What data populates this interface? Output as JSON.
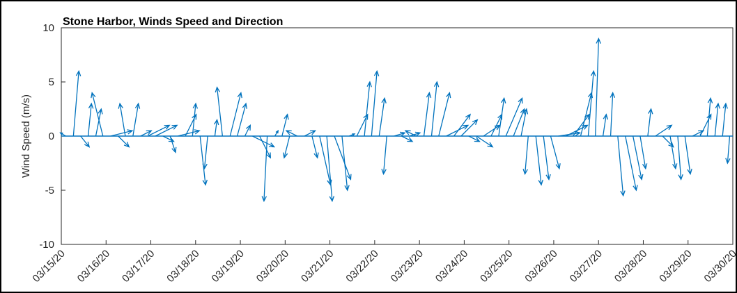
{
  "chart_data": {
    "type": "stick",
    "title": "Stone Harbor, Winds Speed and Direction",
    "y_label": "Wind Speed (m/s)",
    "xlim": [
      0,
      15
    ],
    "xticks": [
      {
        "value": 0,
        "label": "03/15/20"
      },
      {
        "value": 1,
        "label": "03/16/20"
      },
      {
        "value": 2,
        "label": "03/17/20"
      },
      {
        "value": 3,
        "label": "03/18/20"
      },
      {
        "value": 4,
        "label": "03/19/20"
      },
      {
        "value": 5,
        "label": "03/20/20"
      },
      {
        "value": 6,
        "label": "03/21/20"
      },
      {
        "value": 7,
        "label": "03/22/20"
      },
      {
        "value": 8,
        "label": "03/23/20"
      },
      {
        "value": 9,
        "label": "03/24/20"
      },
      {
        "value": 10,
        "label": "03/25/20"
      },
      {
        "value": 11,
        "label": "03/26/20"
      },
      {
        "value": 12,
        "label": "03/27/20"
      },
      {
        "value": 13,
        "label": "03/28/20"
      },
      {
        "value": 14,
        "label": "03/29/20"
      },
      {
        "value": 15,
        "label": "03/30/20"
      }
    ],
    "ylim": [
      -10,
      10
    ],
    "yticks": [
      -10,
      -5,
      0,
      5,
      10
    ],
    "color": "#0072bd",
    "x": [
      0.1,
      0.27,
      0.43,
      0.6,
      0.77,
      0.93,
      1.1,
      1.27,
      1.43,
      1.6,
      1.77,
      1.93,
      2.1,
      2.27,
      2.43,
      2.6,
      2.77,
      2.93,
      3.1,
      3.27,
      3.43,
      3.6,
      3.77,
      3.93,
      4.1,
      4.27,
      4.43,
      4.6,
      4.77,
      4.93,
      5.1,
      5.27,
      5.43,
      5.6,
      5.77,
      5.93,
      6.1,
      6.27,
      6.43,
      6.6,
      6.77,
      6.93,
      7.1,
      7.27,
      7.43,
      7.6,
      7.77,
      7.93,
      8.1,
      8.27,
      8.43,
      8.6,
      8.77,
      8.93,
      9.1,
      9.27,
      9.43,
      9.6,
      9.77,
      9.93,
      10.1,
      10.27,
      10.43,
      10.6,
      10.77,
      10.93,
      11.1,
      11.27,
      11.43,
      11.6,
      11.77,
      11.93,
      12.1,
      12.27,
      12.43,
      12.6,
      12.77,
      12.93,
      13.1,
      13.27,
      13.43,
      13.6,
      13.77,
      13.93,
      14.1,
      14.27,
      14.43,
      14.6,
      14.77,
      14.93
    ],
    "u": [
      -0.5,
      0.5,
      0.8,
      0.3,
      0.5,
      -1,
      2,
      1,
      -0.5,
      0.5,
      1,
      2,
      2,
      1,
      0.5,
      2,
      1,
      0.3,
      0.5,
      -0.3,
      0.2,
      -0.5,
      1,
      0.8,
      0.5,
      2,
      1,
      -0.3,
      0.3,
      0.5,
      -0.5,
      -1,
      1,
      0.5,
      1,
      0.5,
      1.5,
      0.5,
      0.5,
      1,
      0.5,
      0.5,
      0.5,
      -0.3,
      1,
      1,
      1,
      -1,
      0.5,
      0.5,
      1,
      2,
      1.5,
      1.5,
      1,
      1.5,
      1.5,
      1,
      0.5,
      1.5,
      1,
      0.5,
      -0.3,
      0.5,
      0.5,
      0.8,
      2,
      2,
      1.5,
      1,
      0.5,
      0.3,
      0.3,
      0.2,
      0.5,
      1,
      0.8,
      0.5,
      0.3,
      1.5,
      1,
      0.5,
      0.3,
      0.5,
      1,
      1,
      0.3,
      0.3,
      0.3,
      -0.2
    ],
    "v": [
      0.3,
      6,
      -1,
      3,
      2.5,
      4,
      0.5,
      -1,
      3,
      3,
      0.5,
      1,
      1,
      -0.5,
      -1.5,
      0.5,
      2,
      3,
      -4.5,
      -3,
      1.5,
      4.5,
      4,
      3,
      1,
      -1,
      -2,
      -6,
      0.5,
      2,
      -2,
      0.5,
      0.5,
      -2,
      -4.5,
      -6,
      -4,
      -5,
      0.2,
      2,
      5,
      6,
      3.5,
      -3.5,
      0.3,
      -0.5,
      0.3,
      0.5,
      4,
      5,
      4,
      1,
      2,
      1.5,
      -0.5,
      -1,
      1,
      2,
      3.5,
      3.5,
      2.5,
      2.5,
      -3.5,
      -4.5,
      -4,
      -3,
      0.3,
      1,
      2,
      4,
      6,
      9,
      2,
      4,
      -5.5,
      -5,
      -4,
      -3,
      2.5,
      1,
      -1,
      -3,
      -4,
      -3.5,
      0.5,
      2,
      3.5,
      3,
      3,
      -2.5
    ]
  }
}
